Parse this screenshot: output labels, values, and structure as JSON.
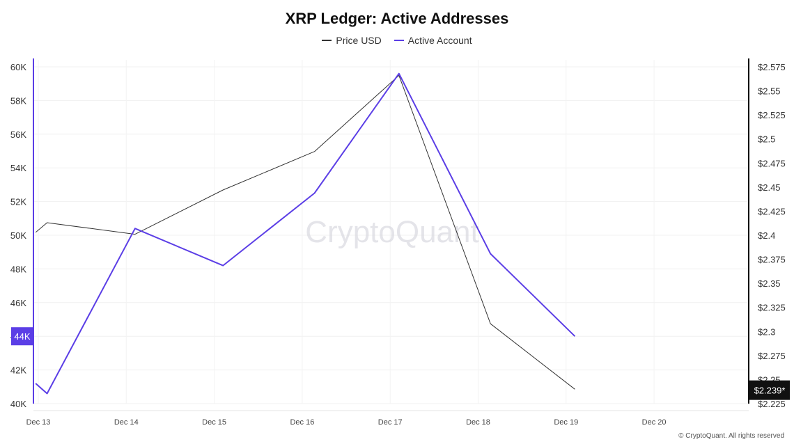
{
  "chart_data": {
    "type": "line",
    "title": "XRP Ledger: Active Addresses",
    "x": [
      "Dec 13",
      "Dec 14",
      "Dec 15",
      "Dec 16",
      "Dec 17",
      "Dec 18",
      "Dec 19",
      "Dec 20"
    ],
    "series": [
      {
        "name": "Price USD",
        "axis": "right",
        "color": "#333333",
        "points": [
          {
            "x": 12.97,
            "y": 2.403
          },
          {
            "x": 13.1,
            "y": 2.413
          },
          {
            "x": 14.1,
            "y": 2.401
          },
          {
            "x": 15.1,
            "y": 2.447
          },
          {
            "x": 16.14,
            "y": 2.487
          },
          {
            "x": 17.1,
            "y": 2.566
          },
          {
            "x": 18.14,
            "y": 2.308
          },
          {
            "x": 19.1,
            "y": 2.24
          }
        ]
      },
      {
        "name": "Active Account",
        "axis": "left",
        "color": "#5b3ee6",
        "points": [
          {
            "x": 12.97,
            "y": 41200
          },
          {
            "x": 13.1,
            "y": 40600
          },
          {
            "x": 14.1,
            "y": 50400
          },
          {
            "x": 15.1,
            "y": 48200
          },
          {
            "x": 16.14,
            "y": 52500
          },
          {
            "x": 17.1,
            "y": 59600
          },
          {
            "x": 18.14,
            "y": 48900
          },
          {
            "x": 19.1,
            "y": 44000
          }
        ]
      }
    ],
    "y_left": {
      "ticks": [
        40000,
        42000,
        44000,
        46000,
        48000,
        50000,
        52000,
        54000,
        56000,
        58000,
        60000
      ],
      "tick_labels": [
        "40K",
        "42K",
        "44K",
        "46K",
        "48K",
        "50K",
        "52K",
        "54K",
        "56K",
        "58K",
        "60K"
      ],
      "ylim": [
        40000,
        60000
      ],
      "highlight_label": "44K",
      "highlight_value": 44000
    },
    "y_right": {
      "ticks": [
        2.225,
        2.25,
        2.275,
        2.3,
        2.325,
        2.35,
        2.375,
        2.4,
        2.425,
        2.45,
        2.475,
        2.5,
        2.525,
        2.55,
        2.575
      ],
      "tick_labels": [
        "$2.225",
        "$2.25",
        "$2.275",
        "$2.3",
        "$2.325",
        "$2.35",
        "$2.375",
        "$2.4",
        "$2.425",
        "$2.45",
        "$2.475",
        "$2.5",
        "$2.525",
        "$2.55",
        "$2.575"
      ],
      "ylim": [
        2.225,
        2.575
      ],
      "highlight_label": "$2.239*",
      "highlight_value": 2.239
    },
    "grid": true,
    "legend_position": "top-center",
    "watermark": "CryptoQuant"
  },
  "footer": "© CryptoQuant. All rights reserved"
}
